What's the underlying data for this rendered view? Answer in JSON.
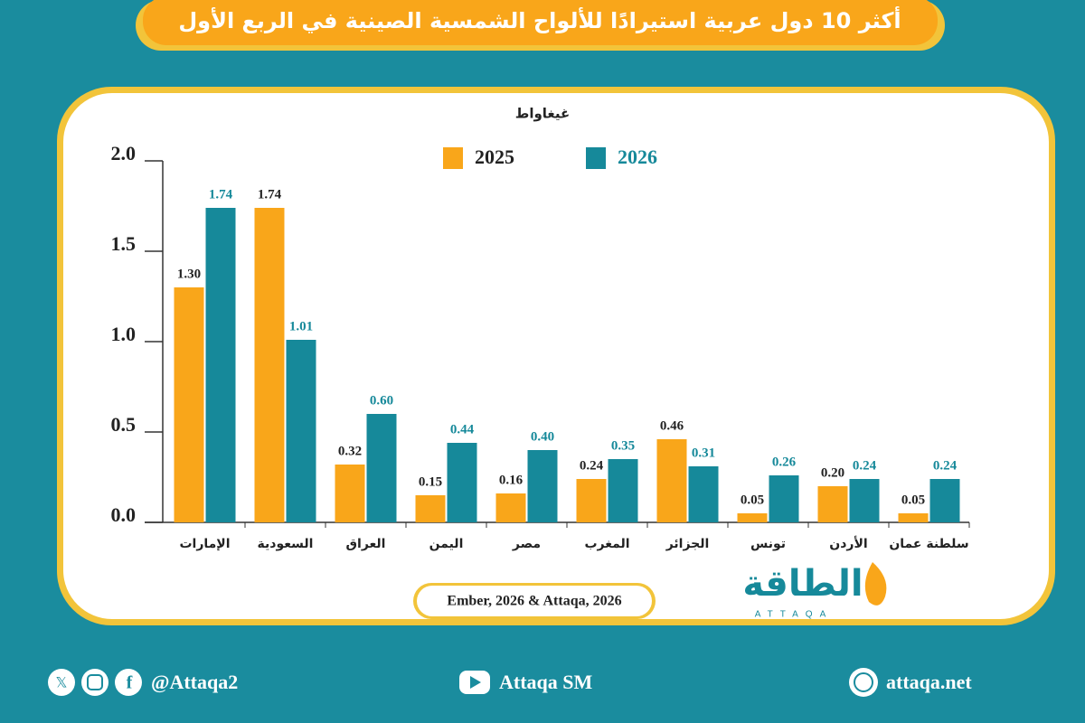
{
  "chart_data": {
    "type": "bar",
    "title": "أكثر 10 دول عربية استيرادًا للألواح الشمسية الصينية في الربع الأول",
    "y_label": "غيغاواط",
    "categories": [
      "الإمارات",
      "السعودية",
      "العراق",
      "اليمن",
      "مصر",
      "المغرب",
      "الجزائر",
      "تونس",
      "الأردن",
      "سلطنة عمان"
    ],
    "series": [
      {
        "name": "2025",
        "color": "#f9a61a",
        "label_color": "#222222",
        "values": [
          1.3,
          1.74,
          0.32,
          0.15,
          0.16,
          0.24,
          0.46,
          0.05,
          0.2,
          0.05
        ],
        "value_labels": [
          "1.30",
          "1.74",
          "0.32",
          "0.15",
          "0.16",
          "0.24",
          "0.46",
          "0.05",
          "0.20",
          "0.05"
        ]
      },
      {
        "name": "2026",
        "color": "#16899a",
        "label_color": "#16899a",
        "values": [
          1.74,
          1.01,
          0.6,
          0.44,
          0.4,
          0.35,
          0.31,
          0.26,
          0.24,
          0.24
        ],
        "value_labels": [
          "1.74",
          "1.01",
          "0.60",
          "0.44",
          "0.40",
          "0.35",
          "0.31",
          "0.26",
          "0.24",
          "0.24"
        ]
      }
    ],
    "ylim": [
      0,
      2
    ],
    "yticks": [
      {
        "value": 0,
        "label": "0.0"
      },
      {
        "value": 0.5,
        "label": "0.5"
      },
      {
        "value": 1,
        "label": "1.0"
      },
      {
        "value": 1.5,
        "label": "1.5"
      },
      {
        "value": 2,
        "label": "2.0"
      }
    ],
    "source": "Ember, 2026 & Attaqa, 2026"
  },
  "logo": {
    "text": "الطاقة",
    "latin": "ATTAQA"
  },
  "footer": {
    "social": "@Attaqa2",
    "youtube": "Attaqa SM",
    "website": "attaqa.net"
  }
}
